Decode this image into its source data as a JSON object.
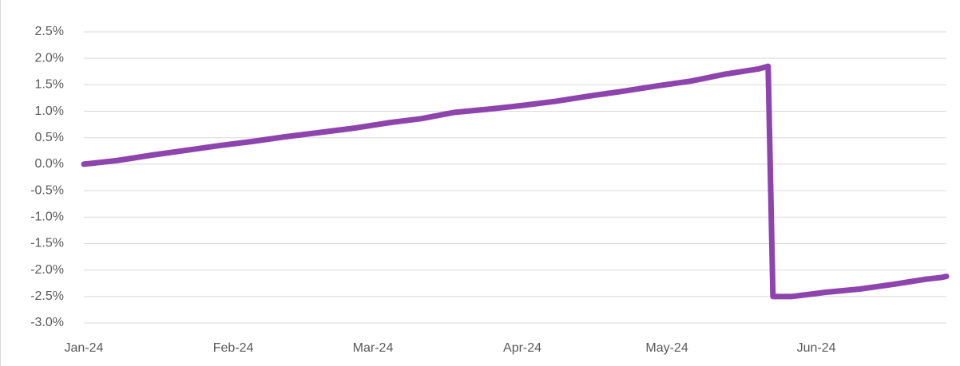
{
  "chart_data": {
    "type": "line",
    "x": [
      0,
      7,
      14,
      21,
      28,
      35,
      42,
      49,
      56,
      63,
      70,
      77,
      84,
      91,
      98,
      105,
      112,
      119,
      126,
      133,
      140,
      142,
      143,
      147,
      154,
      161,
      168,
      175,
      178,
      179
    ],
    "series": [
      {
        "color": "#8e44ad",
        "values": [
          0.0,
          0.07,
          0.17,
          0.26,
          0.35,
          0.43,
          0.52,
          0.6,
          0.68,
          0.78,
          0.86,
          0.98,
          1.04,
          1.11,
          1.19,
          1.29,
          1.38,
          1.48,
          1.57,
          1.7,
          1.8,
          1.85,
          -2.5,
          -2.5,
          -2.42,
          -2.36,
          -2.27,
          -2.17,
          -2.14,
          -2.12
        ]
      }
    ],
    "xlim": [
      0,
      179
    ],
    "xticks": [
      {
        "value": 0,
        "label": "Jan-24"
      },
      {
        "value": 31,
        "label": "Feb-24"
      },
      {
        "value": 60,
        "label": "Mar-24"
      },
      {
        "value": 91,
        "label": "Apr-24"
      },
      {
        "value": 121,
        "label": "May-24"
      },
      {
        "value": 152,
        "label": "Jun-24"
      }
    ],
    "ylim": [
      -3.0,
      2.5
    ],
    "yticks": [
      {
        "value": 2.5,
        "label": "2.5%"
      },
      {
        "value": 2.0,
        "label": "2.0%"
      },
      {
        "value": 1.5,
        "label": "1.5%"
      },
      {
        "value": 1.0,
        "label": "1.0%"
      },
      {
        "value": 0.5,
        "label": "0.5%"
      },
      {
        "value": 0.0,
        "label": "0.0%"
      },
      {
        "value": -0.5,
        "label": "-0.5%"
      },
      {
        "value": -1.0,
        "label": "-1.0%"
      },
      {
        "value": -1.5,
        "label": "-1.5%"
      },
      {
        "value": -2.0,
        "label": "-2.0%"
      },
      {
        "value": -2.5,
        "label": "-2.5%"
      },
      {
        "value": -3.0,
        "label": "-3.0%"
      }
    ],
    "grid": true
  }
}
